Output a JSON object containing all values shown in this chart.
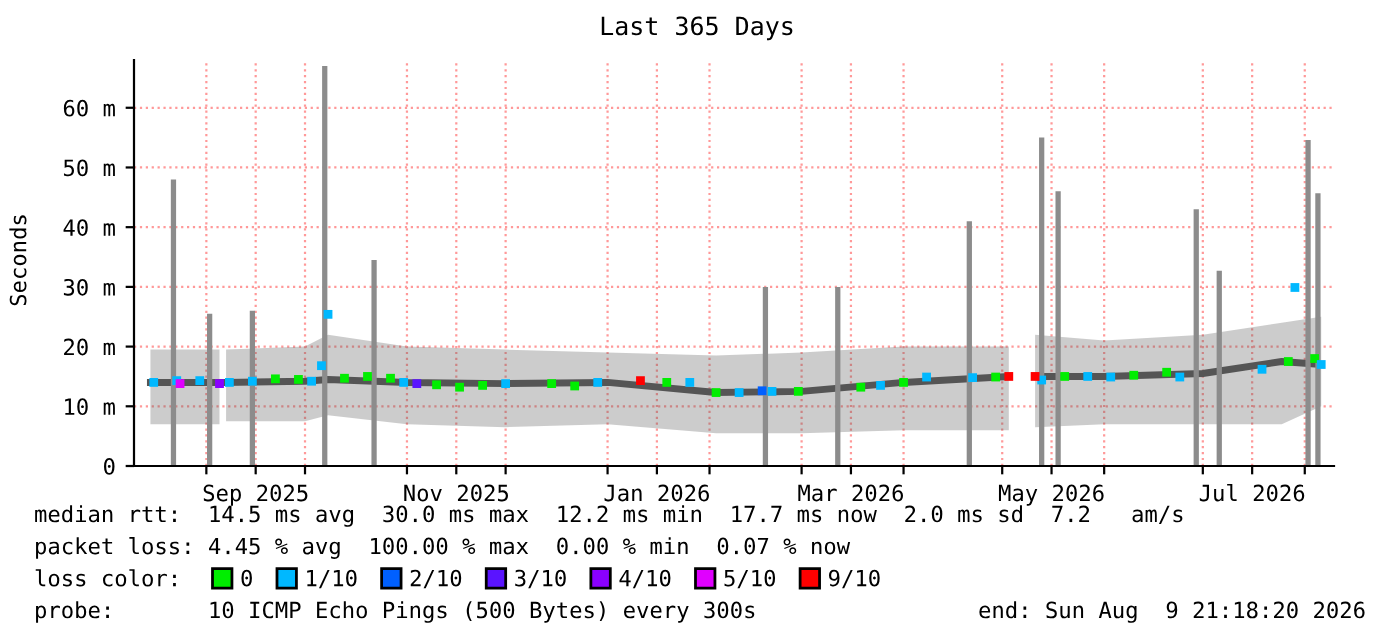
{
  "chart_data": {
    "type": "scatter",
    "title": "Last 365 Days",
    "ylabel": "Seconds",
    "xlim": [
      "2025-08-10",
      "2026-08-09T21:18"
    ],
    "ylim": [
      0,
      68
    ],
    "xticks": [
      {
        "value": "2025-09-01",
        "label": null
      },
      {
        "value": "2025-09-16",
        "label": "Sep 2025"
      },
      {
        "value": "2025-10-01",
        "label": null
      },
      {
        "value": "2025-11-01",
        "label": null
      },
      {
        "value": "2025-11-16",
        "label": "Nov 2025"
      },
      {
        "value": "2025-12-01",
        "label": null
      },
      {
        "value": "2026-01-01",
        "label": null
      },
      {
        "value": "2026-01-16",
        "label": "Jan 2026"
      },
      {
        "value": "2026-02-01",
        "label": null
      },
      {
        "value": "2026-03-01",
        "label": null
      },
      {
        "value": "2026-03-16",
        "label": "Mar 2026"
      },
      {
        "value": "2026-04-01",
        "label": null
      },
      {
        "value": "2026-05-01",
        "label": null
      },
      {
        "value": "2026-05-16",
        "label": "May 2026"
      },
      {
        "value": "2026-06-01",
        "label": null
      },
      {
        "value": "2026-07-01",
        "label": null
      },
      {
        "value": "2026-07-16",
        "label": "Jul 2026"
      },
      {
        "value": "2026-08-01",
        "label": null
      }
    ],
    "yticks": [
      0,
      {
        "value": 10,
        "label": "10 m"
      },
      {
        "value": 20,
        "label": "20 m"
      },
      {
        "value": 30,
        "label": "30 m"
      },
      {
        "value": 40,
        "label": "40 m"
      },
      {
        "value": 50,
        "label": "50 m"
      },
      {
        "value": 60,
        "label": "60 m"
      }
    ],
    "grid": true,
    "legend": "bottom",
    "legend_title": "loss color:",
    "marker": "square",
    "series": [
      {
        "type": "line",
        "color": "#555555",
        "marker": "none",
        "x": [
          "2025-08-15",
          "2025-09-05",
          "2025-09-06",
          "2025-09-07",
          "2025-10-01",
          "2025-10-08",
          "2025-11-01",
          "2025-12-01",
          "2026-01-01",
          "2026-02-03",
          "2026-03-01",
          "2026-04-01",
          "2026-05-03",
          "2026-05-07",
          "2026-05-11",
          "2026-06-01",
          "2026-07-01",
          "2026-07-25",
          "2026-08-06"
        ],
        "values": [
          14,
          14,
          null,
          14,
          14.2,
          14.5,
          14,
          13.8,
          14,
          12.3,
          12.5,
          14,
          15,
          null,
          15,
          15,
          15.5,
          17.5,
          17
        ],
        "lower": [
          7,
          7,
          null,
          7.5,
          7.5,
          8.5,
          7,
          6.5,
          7,
          5.5,
          5.5,
          6,
          6,
          null,
          6.5,
          7,
          7,
          7,
          10
        ],
        "upper": [
          19.5,
          19.5,
          null,
          19.5,
          20,
          22,
          20,
          19.5,
          19,
          18.5,
          19,
          20,
          20,
          null,
          22,
          21,
          22,
          24,
          25
        ]
      },
      {
        "type": "bar",
        "color": "#8c8c8c",
        "x": [
          "2025-08-22",
          "2025-09-02",
          "2025-09-15",
          "2025-10-07",
          "2025-10-22",
          "2026-02-18",
          "2026-03-12",
          "2026-04-21",
          "2026-05-13",
          "2026-05-18",
          "2026-06-29",
          "2026-07-06",
          "2026-08-02",
          "2026-08-05"
        ],
        "values": [
          48,
          25.5,
          26,
          67,
          34.5,
          30,
          30,
          41,
          55,
          46,
          43,
          32.7,
          54.6,
          45.7
        ]
      },
      {
        "name": "0",
        "color": "#00ee00",
        "x": [
          "2025-09-22",
          "2025-09-29",
          "2025-10-13",
          "2025-10-20",
          "2025-10-27",
          "2025-11-10",
          "2025-11-17",
          "2025-11-24",
          "2025-12-15",
          "2025-12-22",
          "2026-01-19",
          "2026-02-03",
          "2026-02-28",
          "2026-03-19",
          "2026-04-01",
          "2026-04-29",
          "2026-05-20",
          "2026-06-10",
          "2026-06-20",
          "2026-07-27",
          "2026-08-04"
        ],
        "values": [
          14.6,
          14.5,
          14.7,
          15,
          14.7,
          13.6,
          13.2,
          13.5,
          13.8,
          13.4,
          14,
          12.3,
          12.5,
          13.2,
          14,
          14.9,
          15,
          15.2,
          15.7,
          17.5,
          18
        ]
      },
      {
        "name": "1/10",
        "color": "#00b8ff",
        "x": [
          "2025-08-16",
          "2025-08-23",
          "2025-08-30",
          "2025-09-08",
          "2025-09-15",
          "2025-10-03",
          "2025-10-06",
          "2025-10-08",
          "2025-10-31",
          "2025-12-01",
          "2025-12-29",
          "2026-01-26",
          "2026-02-10",
          "2026-02-20",
          "2026-03-25",
          "2026-04-08",
          "2026-04-22",
          "2026-05-13",
          "2026-05-27",
          "2026-06-03",
          "2026-06-24",
          "2026-07-19",
          "2026-07-29",
          "2026-08-06"
        ],
        "values": [
          14,
          14.3,
          14.3,
          14,
          14.2,
          14.2,
          16.8,
          25.4,
          14,
          13.8,
          14,
          14,
          12.3,
          12.5,
          13.5,
          14.9,
          14.8,
          14.4,
          15,
          14.9,
          14.9,
          16.2,
          29.9,
          17
        ]
      },
      {
        "name": "2/10",
        "color": "#0060ff",
        "x": [
          "2026-02-17"
        ],
        "values": [
          12.6
        ]
      },
      {
        "name": "3/10",
        "color": "#5a14ff",
        "x": [
          "2025-11-04"
        ],
        "values": [
          13.8
        ]
      },
      {
        "name": "4/10",
        "color": "#8a00ff",
        "x": [
          "2025-09-05"
        ],
        "values": [
          13.8
        ]
      },
      {
        "name": "5/10",
        "color": "#e000ff",
        "x": [
          "2025-08-24"
        ],
        "values": [
          13.8
        ]
      },
      {
        "name": "9/10",
        "color": "#ff0000",
        "x": [
          "2026-01-11",
          "2026-05-03",
          "2026-05-11"
        ],
        "values": [
          14.3,
          15,
          15
        ]
      }
    ],
    "annotations": [
      "median rtt:  14.5 ms avg  30.0 ms max  12.2 ms min  17.7 ms now  2.0 ms sd  7.2   am/s",
      "packet loss: 4.45 % avg  100.00 % max  0.00 % min  0.07 % now",
      "probe:       10 ICMP Echo Pings (500 Bytes) every 300s",
      "end: Sun Aug  9 21:18:20 2026"
    ]
  }
}
